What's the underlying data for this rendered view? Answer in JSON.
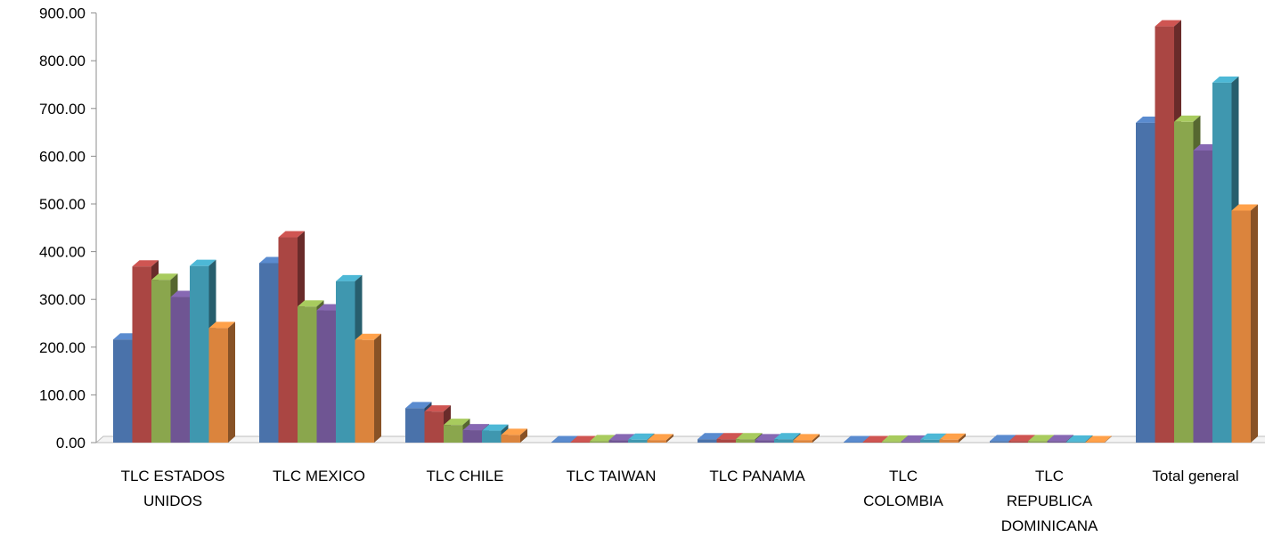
{
  "chart_data": {
    "type": "bar",
    "style": "3d-clustered-column",
    "categories": [
      [
        "TLC ESTADOS",
        "UNIDOS"
      ],
      [
        "TLC MEXICO"
      ],
      [
        "TLC CHILE"
      ],
      [
        "TLC TAIWAN"
      ],
      [
        "TLC PANAMA"
      ],
      [
        "TLC",
        "COLOMBIA"
      ],
      [
        "TLC",
        "REPUBLICA",
        "DOMINICANA"
      ],
      [
        "Total general"
      ]
    ],
    "series": [
      {
        "color": "#4A72AA",
        "values": [
          216,
          376,
          72,
          1,
          7,
          1,
          3,
          670
        ]
      },
      {
        "color": "#AA4643",
        "values": [
          369,
          430,
          65,
          1,
          7,
          1,
          3,
          872
        ]
      },
      {
        "color": "#8AA64D",
        "values": [
          341,
          285,
          37,
          3,
          7,
          2,
          3,
          672
        ]
      },
      {
        "color": "#6F5593",
        "values": [
          305,
          277,
          26,
          5,
          5,
          2,
          3,
          612
        ]
      },
      {
        "color": "#3F97AF",
        "values": [
          370,
          338,
          25,
          6,
          7,
          6,
          2,
          754
        ]
      },
      {
        "color": "#DB843D",
        "values": [
          240,
          215,
          16,
          5,
          5,
          6,
          1,
          486
        ]
      }
    ],
    "ylim": [
      0,
      900
    ],
    "yticks": [
      "0.00",
      "100.00",
      "200.00",
      "300.00",
      "400.00",
      "500.00",
      "600.00",
      "700.00",
      "800.00",
      "900.00"
    ],
    "grid": false,
    "legend": "none"
  }
}
